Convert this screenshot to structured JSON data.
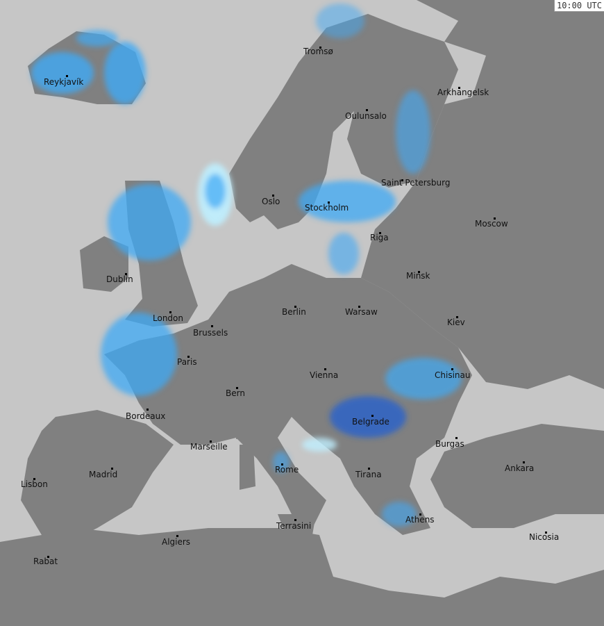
{
  "timestamp": "10:00 UTC",
  "colors": {
    "sea": "#c6c6c6",
    "land": "#808080",
    "precip_light": "#bfefff",
    "precip_medium": "#3fa9f5",
    "precip_heavy": "#1f5fd0"
  },
  "cities": [
    {
      "name": "Reykjavík"
    },
    {
      "name": "Tromsø"
    },
    {
      "name": "Arkhangelsk"
    },
    {
      "name": "Oulunsalo"
    },
    {
      "name": "Saint Petersburg"
    },
    {
      "name": "Oslo"
    },
    {
      "name": "Stockholm"
    },
    {
      "name": "Moscow"
    },
    {
      "name": "Riga"
    },
    {
      "name": "Dublin"
    },
    {
      "name": "Minsk"
    },
    {
      "name": "London"
    },
    {
      "name": "Berlin"
    },
    {
      "name": "Warsaw"
    },
    {
      "name": "Kiev"
    },
    {
      "name": "Brussels"
    },
    {
      "name": "Paris"
    },
    {
      "name": "Vienna"
    },
    {
      "name": "Chisinau"
    },
    {
      "name": "Bern"
    },
    {
      "name": "Bordeaux"
    },
    {
      "name": "Belgrade"
    },
    {
      "name": "Marseille"
    },
    {
      "name": "Burgas"
    },
    {
      "name": "Madrid"
    },
    {
      "name": "Ankara"
    },
    {
      "name": "Rome"
    },
    {
      "name": "Tirana"
    },
    {
      "name": "Lisbon"
    },
    {
      "name": "Athens"
    },
    {
      "name": "Terrasini"
    },
    {
      "name": "Algiers"
    },
    {
      "name": "Nicosia"
    },
    {
      "name": "Rabat"
    }
  ]
}
